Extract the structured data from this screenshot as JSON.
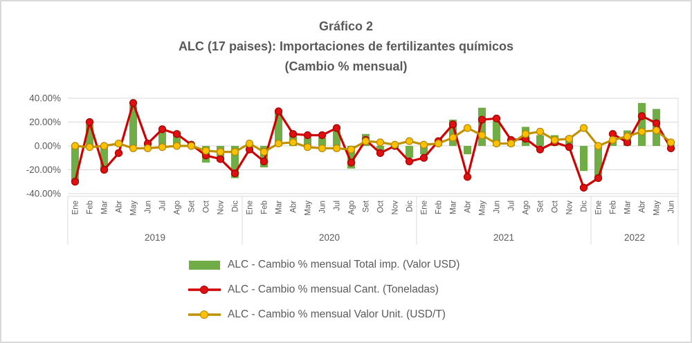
{
  "title": {
    "line1": "Gráfico 2",
    "line2": "ALC (17 paises): Importaciones de fertilizantes químicos",
    "line3": "(Cambio % mensual)"
  },
  "chart_data": {
    "type": "bar-line-combo",
    "title": "Gráfico 2 — ALC (17 paises): Importaciones de fertilizantes químicos (Cambio % mensual)",
    "grid": true,
    "legend_position": "bottom",
    "y_axis": {
      "min": -40,
      "max": 40,
      "ticks": [
        {
          "label": "40.00%",
          "value": 40
        },
        {
          "label": "20.00%",
          "value": 20
        },
        {
          "label": "0.00%",
          "value": 0
        },
        {
          "label": "-20.00%",
          "value": -20
        },
        {
          "label": "-40.00%",
          "value": -40
        }
      ]
    },
    "x_axis": {
      "groups": [
        {
          "year": "2019",
          "months": [
            "Ene",
            "Feb",
            "Mar",
            "Abr",
            "May",
            "Jun",
            "Jul",
            "Ago",
            "Set",
            "Oct",
            "Nov",
            "Dic"
          ]
        },
        {
          "year": "2020",
          "months": [
            "Ene",
            "Feb",
            "Mar",
            "Abr",
            "May",
            "Jun",
            "Jul",
            "Ago",
            "Set",
            "Oct",
            "Nov",
            "Dic"
          ]
        },
        {
          "year": "2021",
          "months": [
            "Ene",
            "Feb",
            "Mar",
            "Abr",
            "May",
            "Jun",
            "Jul",
            "Ago",
            "Set",
            "Oct",
            "Nov",
            "Dic"
          ]
        },
        {
          "year": "2022",
          "months": [
            "Ene",
            "Feb",
            "Mar",
            "Abr",
            "May",
            "Jun"
          ]
        }
      ]
    },
    "series": [
      {
        "name": "ALC - Cambio % mensual Total imp. (Valor USD)",
        "type": "bar",
        "color": "#70AD47",
        "values": [
          -29,
          18,
          -21,
          2,
          34,
          2,
          12,
          12,
          -1,
          -14,
          -13,
          -27,
          -1,
          -18,
          28,
          9,
          7,
          7,
          13,
          -19,
          10,
          -4,
          1,
          -10,
          -7,
          1,
          22,
          -7,
          32,
          21,
          1,
          16,
          9,
          9,
          8,
          -21,
          -27,
          5,
          13,
          36,
          31,
          1
        ]
      },
      {
        "name": "ALC - Cambio % mensual Cant. (Toneladas)",
        "type": "line",
        "color": "#D00000",
        "marker_fill": "#E01010",
        "marker_stroke": "#A00000",
        "values": [
          -30,
          20,
          -20,
          -6,
          36,
          2,
          14,
          10,
          1,
          -8,
          -11,
          -23,
          -3,
          -13,
          29,
          10,
          9,
          9,
          15,
          -14,
          5,
          -6,
          0,
          -13,
          -10,
          4,
          18,
          -26,
          22,
          23,
          5,
          6,
          -3,
          3,
          -1,
          -35,
          -27,
          10,
          3,
          25,
          19,
          -2
        ]
      },
      {
        "name": "ALC - Cambio % mensual Valor Unit. (USD/T)",
        "type": "line",
        "color": "#BF9000",
        "marker_fill": "#FFC000",
        "marker_stroke": "#B38600",
        "values": [
          0,
          -1,
          0,
          2,
          -2,
          -2,
          -1,
          0,
          0,
          -4,
          -5,
          -5,
          2,
          -5,
          2,
          3,
          -1,
          -2,
          -2,
          -3,
          4,
          3,
          1,
          4,
          1,
          2,
          7,
          15,
          9,
          2,
          2,
          10,
          12,
          5,
          6,
          15,
          0,
          5,
          8,
          12,
          13,
          3
        ]
      }
    ],
    "colors": {
      "gridline": "#D9D9D9",
      "axis_text": "#595959",
      "title_text": "#595959"
    }
  }
}
